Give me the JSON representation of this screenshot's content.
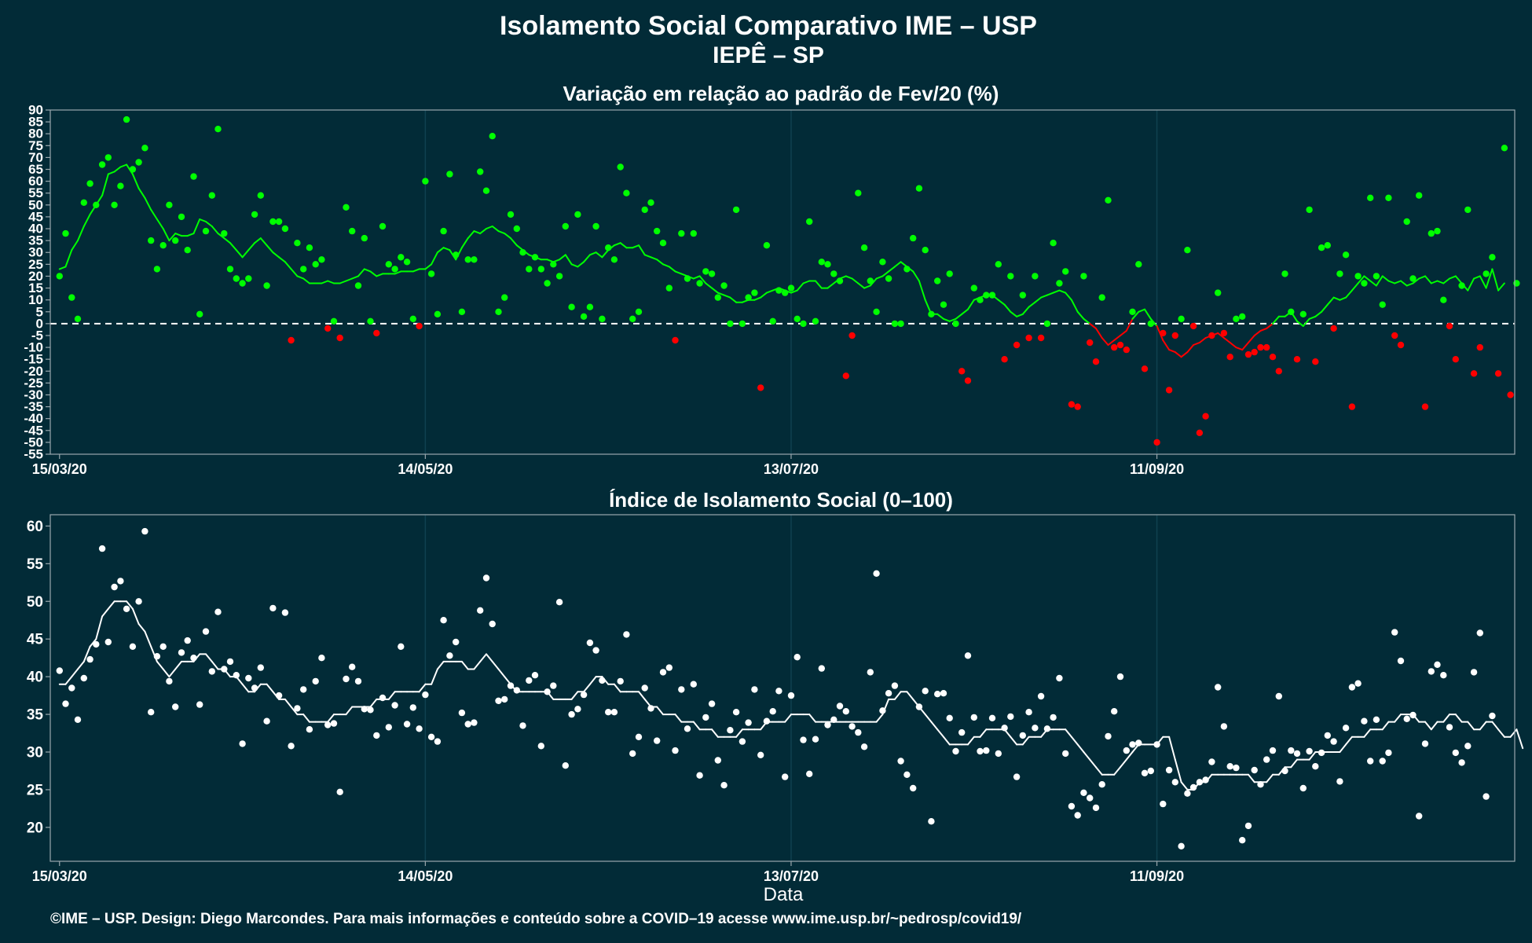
{
  "title_line1": "Isolamento Social Comparativo IME – USP",
  "title_line2": "IEPÊ – SP",
  "footer": "©IME – USP. Design: Diego Marcondes. Para mais informações e conteúdo sobre a COVID–19 acesse www.ime.usp.br/~pedrosp/covid19/",
  "colors": {
    "background": "#022b37",
    "positive": "#00ff00",
    "negative": "#ff0000",
    "index": "#ffffff",
    "zero_line": "#ffffff"
  },
  "chart_data": [
    {
      "type": "scatter",
      "title": "Variação em relação ao padrão de Fev/20 (%)",
      "xlabel": "",
      "ylabel": "",
      "x_ticks": [
        "15/03/20",
        "14/05/20",
        "13/07/20",
        "11/09/20"
      ],
      "x_start": "2020-03-15",
      "ylim": [
        -55,
        90
      ],
      "y_ticks": [
        90,
        85,
        80,
        75,
        70,
        65,
        60,
        55,
        50,
        45,
        40,
        35,
        30,
        25,
        20,
        15,
        10,
        5,
        0,
        -5,
        -10,
        -15,
        -20,
        -25,
        -30,
        -35,
        -40,
        -45,
        -50,
        -55
      ],
      "reference_line": 0,
      "series": [
        {
          "kind": "daily_points",
          "coloring": "green when >= 0, red when < 0",
          "values": [
            20,
            38,
            11,
            2,
            51,
            59,
            50,
            67,
            70,
            50,
            58,
            86,
            65,
            68,
            74,
            35,
            23,
            33,
            50,
            35,
            45,
            31,
            62,
            4,
            39,
            54,
            82,
            38,
            23,
            19,
            17,
            19,
            46,
            54,
            16,
            43,
            43,
            40,
            -7,
            34,
            23,
            32,
            25,
            27,
            -2,
            1,
            -6,
            49,
            39,
            16,
            36,
            1,
            -4,
            41,
            25,
            23,
            28,
            26,
            2,
            -1,
            60,
            21,
            4,
            39,
            63,
            29,
            5,
            27,
            27,
            64,
            56,
            79,
            5,
            11,
            46,
            40,
            30,
            23,
            28,
            23,
            17,
            25,
            20,
            41,
            7,
            46,
            3,
            7,
            41,
            2,
            32,
            27,
            66,
            55,
            2,
            5,
            48,
            51,
            39,
            34,
            15,
            -7,
            38,
            19,
            38,
            17,
            22,
            21,
            11,
            16,
            0,
            48,
            0,
            11,
            13,
            -27,
            33,
            1,
            14,
            13,
            15,
            2,
            0,
            43,
            1,
            26,
            25,
            21,
            18,
            -22,
            -5,
            55,
            32,
            18,
            5,
            26,
            19,
            0,
            0,
            23,
            36,
            57,
            31,
            4,
            18,
            8,
            21,
            0,
            -20,
            -24,
            15,
            10,
            12,
            12,
            25,
            -15,
            20,
            -9,
            12,
            -6,
            20,
            -6,
            0,
            34,
            17,
            22,
            -34,
            -35,
            20,
            -8,
            -16,
            11,
            52,
            -10,
            -9,
            -11,
            5,
            25,
            -19,
            0,
            -50,
            -4,
            -28,
            -5,
            2,
            31,
            -1,
            -46,
            -39,
            -5,
            13,
            -4,
            -14,
            2,
            3,
            -13,
            -12,
            -10,
            -10,
            -14,
            -20,
            21,
            5,
            -15,
            4,
            48,
            -16,
            32,
            33,
            -2,
            21,
            29,
            -35,
            20,
            17,
            53,
            20,
            8,
            53,
            -5,
            -9,
            43,
            19,
            54,
            -35,
            38,
            39,
            10,
            -1,
            -15,
            16,
            48,
            -21,
            -10,
            21,
            28,
            -21,
            74,
            -30,
            17
          ]
        },
        {
          "kind": "7-day moving average",
          "coloring": "green when >= 0, red when < 0",
          "values": [
            23,
            24,
            31,
            35,
            41,
            46,
            50,
            54,
            63,
            64,
            66,
            67,
            63,
            57,
            53,
            48,
            44,
            40,
            35,
            38,
            37,
            37,
            38,
            44,
            43,
            41,
            38,
            36,
            34,
            31,
            28,
            31,
            34,
            36,
            33,
            30,
            28,
            26,
            23,
            20,
            19,
            17,
            17,
            17,
            18,
            17,
            17,
            18,
            19,
            20,
            23,
            22,
            20,
            21,
            21,
            21,
            22,
            22,
            22,
            23,
            23,
            25,
            30,
            32,
            31,
            27,
            32,
            36,
            39,
            38,
            40,
            41,
            39,
            38,
            36,
            33,
            31,
            29,
            28,
            27,
            27,
            26,
            27,
            29,
            25,
            24,
            26,
            29,
            30,
            28,
            31,
            33,
            34,
            32,
            32,
            33,
            29,
            28,
            27,
            25,
            24,
            22,
            21,
            20,
            19,
            20,
            17,
            15,
            13,
            12,
            11,
            9,
            9,
            10,
            10,
            11,
            13,
            14,
            15,
            14,
            13,
            14,
            17,
            18,
            18,
            15,
            15,
            17,
            19,
            20,
            19,
            17,
            15,
            16,
            19,
            20,
            22,
            24,
            26,
            24,
            22,
            18,
            10,
            4,
            4,
            2,
            1,
            2,
            4,
            6,
            10,
            11,
            12,
            12,
            10,
            8,
            5,
            3,
            4,
            7,
            9,
            11,
            12,
            13,
            14,
            13,
            10,
            5,
            2,
            0,
            -2,
            -6,
            -9,
            -7,
            -5,
            -3,
            2,
            5,
            6,
            2,
            -1,
            -7,
            -11,
            -12,
            -14,
            -12,
            -9,
            -8,
            -6,
            -5,
            -4,
            -6,
            -8,
            -10,
            -11,
            -8,
            -5,
            -3,
            -2,
            0,
            3,
            3,
            5,
            1,
            -1,
            2,
            3,
            5,
            8,
            11,
            10,
            11,
            14,
            17,
            20,
            18,
            16,
            20,
            18,
            17,
            18,
            16,
            17,
            19,
            20,
            17,
            18,
            17,
            19,
            20,
            17,
            14,
            19,
            20,
            15,
            23,
            14,
            17
          ]
        }
      ]
    },
    {
      "type": "scatter",
      "title": "Índice de Isolamento Social (0–100)",
      "xlabel": "Data",
      "ylabel": "",
      "x_ticks": [
        "15/03/20",
        "14/05/20",
        "13/07/20",
        "11/09/20"
      ],
      "x_start": "2020-03-15",
      "ylim": [
        15.5,
        61.5
      ],
      "y_ticks": [
        60,
        55,
        50,
        45,
        40,
        35,
        30,
        25,
        20
      ],
      "series": [
        {
          "kind": "daily_points",
          "values": [
            40.8,
            36.4,
            38.5,
            34.3,
            39.8,
            42.3,
            44.3,
            57,
            44.6,
            51.9,
            52.7,
            49,
            44,
            50,
            59.3,
            35.3,
            42.7,
            44,
            39.4,
            36,
            43.2,
            44.8,
            42.5,
            36.3,
            46,
            40.7,
            48.6,
            41,
            42,
            40.2,
            31.1,
            39.8,
            38.5,
            41.2,
            34.1,
            49.1,
            37.5,
            48.5,
            30.8,
            35.8,
            38.3,
            33,
            39.4,
            42.5,
            33.6,
            33.8,
            24.7,
            39.7,
            41.3,
            39.4,
            35.7,
            35.6,
            32.2,
            37.2,
            33.3,
            36.2,
            44,
            33.7,
            35.9,
            33.1,
            37.6,
            32,
            31.4,
            47.5,
            42.8,
            44.6,
            35.2,
            33.7,
            33.9,
            48.8,
            53.1,
            47,
            36.8,
            37,
            38.8,
            38.2,
            33.5,
            39.5,
            40.2,
            30.8,
            38,
            38.8,
            49.9,
            28.2,
            35,
            35.7,
            37.6,
            44.5,
            43.5,
            39.5,
            35.3,
            35.3,
            39.4,
            45.6,
            29.8,
            32,
            38.5,
            35.8,
            31.5,
            40.6,
            41.2,
            30.2,
            38.3,
            33.1,
            39,
            26.9,
            34.6,
            36.4,
            28.9,
            25.6,
            32.9,
            35.3,
            31.4,
            33.9,
            38.3,
            29.6,
            34.1,
            35.4,
            38.1,
            26.7,
            37.5,
            42.6,
            31.6,
            27.1,
            31.7,
            41.1,
            33.6,
            34.3,
            36.1,
            35.4,
            33.4,
            32.6,
            30.7,
            40.6,
            53.7,
            35.5,
            37.8,
            38.8,
            28.8,
            27,
            25.2,
            36,
            38.1,
            20.8,
            37.7,
            37.8,
            34.5,
            30.1,
            32.6,
            42.8,
            34.6,
            30.1,
            30.2,
            34.5,
            29.8,
            33.2,
            34.7,
            26.7,
            32.2,
            35.3,
            33.2,
            37.4,
            33.1,
            34.6,
            39.8,
            29.8,
            22.8,
            21.6,
            24.6,
            23.9,
            22.6,
            25.7,
            32.1,
            35.4,
            40,
            30.2,
            31,
            31.2,
            27.2,
            27.5,
            31,
            23.1,
            27.6,
            26,
            17.5,
            24.5,
            25.3,
            26,
            26.3,
            28.7,
            38.6,
            33.4,
            28.1,
            27.9,
            18.3,
            20.2,
            27.6,
            25.7,
            29,
            30.2,
            37.4,
            27.5,
            30.2,
            29.8,
            25.2,
            30.1,
            28.1,
            29.9,
            32.2,
            31.4,
            26.1,
            33.2,
            38.6,
            39.1,
            34.1,
            28.8,
            34.3,
            28.8,
            29.9,
            45.9,
            42.1,
            34.4,
            34.9,
            21.5,
            31.1,
            40.7,
            41.6,
            40.2,
            33.3,
            29.9,
            28.6,
            30.8,
            40.6,
            45.8,
            24.1,
            34.8
          ]
        },
        {
          "kind": "7-day moving average",
          "values": [
            39,
            39,
            40,
            41,
            42,
            44,
            45,
            48,
            49,
            50,
            50,
            50,
            49,
            47,
            46,
            44,
            42,
            41,
            40,
            41,
            42,
            42,
            42,
            43,
            43,
            42,
            41,
            41,
            40,
            40,
            39,
            38,
            38,
            39,
            39,
            38,
            37,
            37,
            36,
            35,
            35,
            34,
            34,
            34,
            34,
            35,
            35,
            35,
            36,
            36,
            36,
            36,
            37,
            37,
            37,
            38,
            38,
            38,
            38,
            38,
            39,
            39,
            41,
            42,
            42,
            42,
            42,
            41,
            41,
            42,
            43,
            42,
            41,
            40,
            39,
            38,
            38,
            38,
            38,
            38,
            38,
            37,
            37,
            37,
            37,
            38,
            38,
            39,
            40,
            40,
            39,
            39,
            38,
            38,
            38,
            38,
            37,
            36,
            36,
            35,
            35,
            35,
            34,
            34,
            34,
            33,
            33,
            33,
            32,
            32,
            32,
            32,
            33,
            33,
            33,
            33,
            34,
            34,
            34,
            34,
            35,
            35,
            35,
            35,
            34,
            34,
            34,
            34,
            34,
            34,
            34,
            34,
            34,
            34,
            34,
            35,
            37,
            37,
            38,
            38,
            37,
            36,
            35,
            34,
            33,
            32,
            31,
            31,
            31,
            31,
            32,
            32,
            33,
            33,
            33,
            33,
            32,
            31,
            31,
            32,
            32,
            32,
            33,
            33,
            33,
            33,
            32,
            31,
            30,
            29,
            28,
            27,
            27,
            27,
            28,
            29,
            30,
            31,
            31,
            31,
            31,
            32,
            32,
            29,
            26,
            25,
            25,
            26,
            26,
            27,
            27,
            27,
            27,
            27,
            27,
            27,
            26,
            26,
            26,
            27,
            27,
            28,
            28,
            29,
            29,
            29,
            30,
            30,
            30,
            30,
            30,
            31,
            32,
            32,
            32,
            33,
            33,
            33,
            34,
            34,
            35,
            35,
            35,
            34,
            34,
            33,
            34,
            34,
            35,
            35,
            34,
            34,
            33,
            33,
            34,
            34,
            33,
            32,
            32,
            33,
            30.5
          ]
        }
      ]
    }
  ]
}
